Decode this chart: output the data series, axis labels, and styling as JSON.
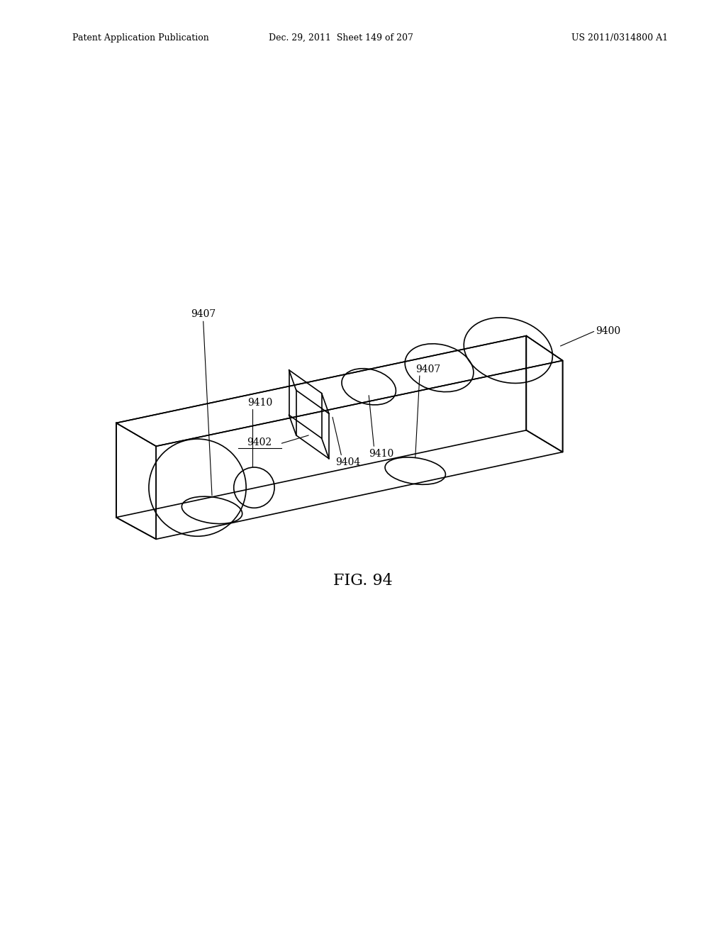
{
  "background_color": "#ffffff",
  "header_left": "Patent Application Publication",
  "header_center": "Dec. 29, 2011  Sheet 149 of 207",
  "header_right": "US 2011/0314800 A1",
  "figure_label": "FIG. 94",
  "lw": 1.2,
  "color": "#000000",
  "fs_label": 10,
  "fs_fig": 16,
  "fs_header": 9
}
